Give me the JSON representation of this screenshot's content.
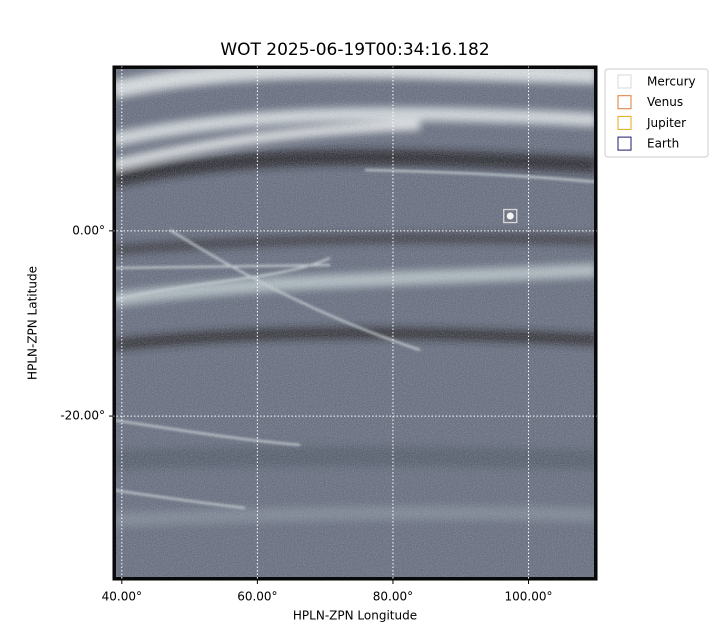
{
  "chart_data": {
    "type": "image",
    "title": "WOT 2025-06-19T00:34:16.182",
    "x_label": "HPLN-ZPN Longitude",
    "y_label": "HPLN-ZPN Latitude",
    "xlim": [
      38.7,
      110.1
    ],
    "ylim": [
      -37.7,
      17.8
    ],
    "xticks": [
      {
        "value": 40,
        "label": "40.00°"
      },
      {
        "value": 60,
        "label": "60.00°"
      },
      {
        "value": 80,
        "label": "80.00°"
      },
      {
        "value": 100,
        "label": "100.00°"
      }
    ],
    "yticks": [
      {
        "value": 0,
        "label": "0.00°"
      },
      {
        "value": -20,
        "label": "-20.00°"
      }
    ],
    "grid": true,
    "legend": "upper right outside",
    "series": [
      {
        "name": "Mercury",
        "color": "#d9d9d9",
        "x": [
          97.3
        ],
        "y": [
          1.6
        ]
      },
      {
        "name": "Venus",
        "color": "#e07b39",
        "x": [],
        "y": []
      },
      {
        "name": "Jupiter",
        "color": "#e6a817",
        "x": [],
        "y": []
      },
      {
        "name": "Earth",
        "color": "#1a1a6e",
        "x": [],
        "y": []
      }
    ]
  }
}
